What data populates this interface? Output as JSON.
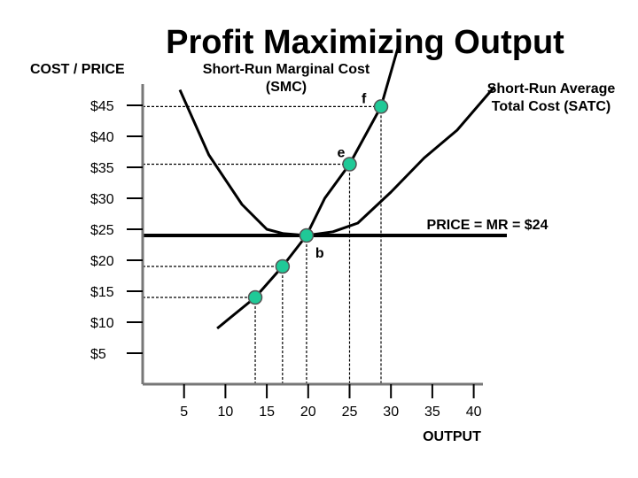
{
  "chart_data": {
    "type": "line",
    "title": "Profit Maximizing Output",
    "ylabel": "COST / PRICE",
    "xlabel": "OUTPUT",
    "y_ticks": [
      {
        "label": "$45",
        "value": 45
      },
      {
        "label": "$40",
        "value": 40
      },
      {
        "label": "$35",
        "value": 35
      },
      {
        "label": "$30",
        "value": 30
      },
      {
        "label": "$25",
        "value": 25
      },
      {
        "label": "$20",
        "value": 20
      },
      {
        "label": "$15",
        "value": 15
      },
      {
        "label": "$10",
        "value": 10
      },
      {
        "label": "$5",
        "value": 5
      }
    ],
    "x_ticks": [
      {
        "label": "5",
        "value": 5
      },
      {
        "label": "10",
        "value": 10
      },
      {
        "label": "15",
        "value": 15
      },
      {
        "label": "20",
        "value": 20
      },
      {
        "label": "25",
        "value": 25
      },
      {
        "label": "30",
        "value": 30
      },
      {
        "label": "35",
        "value": 35
      },
      {
        "label": "40",
        "value": 40
      }
    ],
    "series": [
      {
        "name": "Short-Run Marginal Cost (SMC)",
        "label_lines": [
          "Short-Run Marginal Cost",
          "(SMC)"
        ],
        "points": [
          [
            9,
            9
          ],
          [
            13.6,
            14
          ],
          [
            16.9,
            19
          ],
          [
            19.8,
            24
          ],
          [
            22,
            30
          ],
          [
            25,
            35.5
          ],
          [
            28.8,
            44.8
          ],
          [
            31,
            55
          ]
        ]
      },
      {
        "name": "Short-Run Average Total Cost (SATC)",
        "label_lines": [
          "Short-Run Average",
          "Total Cost (SATC)"
        ],
        "points": [
          [
            4.5,
            47.5
          ],
          [
            8,
            37
          ],
          [
            12,
            29
          ],
          [
            15,
            25
          ],
          [
            17,
            24.3
          ],
          [
            19.8,
            24
          ],
          [
            23,
            24.6
          ],
          [
            26,
            26
          ],
          [
            30,
            31
          ],
          [
            34,
            36.5
          ],
          [
            38,
            41
          ],
          [
            42.5,
            48
          ]
        ]
      },
      {
        "name": "PRICE = MR = $24",
        "label_lines": [
          "PRICE = MR = $24"
        ],
        "points": [
          [
            0,
            24
          ],
          [
            44,
            24
          ]
        ]
      }
    ],
    "points_of_interest": [
      {
        "label": "f",
        "x": 28.8,
        "y": 44.8
      },
      {
        "label": "e",
        "x": 25,
        "y": 35.5
      },
      {
        "label": "b",
        "x": 19.8,
        "y": 24
      },
      {
        "label": "",
        "x": 16.9,
        "y": 19
      },
      {
        "label": "",
        "x": 13.6,
        "y": 14
      }
    ],
    "colors": {
      "marker_fill": "#20c997",
      "line": "#000000"
    }
  }
}
